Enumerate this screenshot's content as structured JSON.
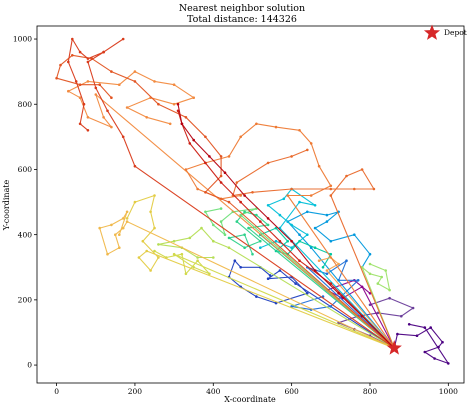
{
  "chart_data": {
    "type": "line",
    "title": "Nearest neighbor solution",
    "subtitle": "Total distance: 144326",
    "xlabel": "X-coordinate",
    "ylabel": "Y-coordinate",
    "xlim": [
      -50,
      1040
    ],
    "ylim": [
      -55,
      1040
    ],
    "x_ticks": [
      0,
      200,
      400,
      600,
      800,
      1000
    ],
    "y_ticks": [
      0,
      200,
      400,
      600,
      800,
      1000
    ],
    "grid": false,
    "legend_position": "top-right",
    "depot": {
      "label": "Depot",
      "x": 862,
      "y": 52,
      "color": "#d62728"
    },
    "series": [
      {
        "color": "#4b0082",
        "points": [
          [
            862,
            52
          ],
          [
            870,
            95
          ],
          [
            920,
            90
          ],
          [
            955,
            115
          ],
          [
            985,
            70
          ],
          [
            975,
            55
          ],
          [
            940,
            40
          ],
          [
            965,
            20
          ],
          [
            1000,
            5
          ],
          [
            940,
            115
          ],
          [
            900,
            125
          ]
        ]
      },
      {
        "color": "#6a3d9a",
        "points": [
          [
            862,
            52
          ],
          [
            800,
            90
          ],
          [
            760,
            110
          ],
          [
            720,
            130
          ],
          [
            770,
            150
          ],
          [
            820,
            160
          ],
          [
            880,
            150
          ],
          [
            910,
            175
          ],
          [
            850,
            205
          ],
          [
            800,
            185
          ]
        ]
      },
      {
        "color": "#8b008b",
        "points": [
          [
            862,
            52
          ],
          [
            780,
            240
          ],
          [
            730,
            205
          ],
          [
            690,
            230
          ],
          [
            760,
            260
          ],
          [
            800,
            220
          ]
        ]
      },
      {
        "color": "#1f3fbf",
        "points": [
          [
            862,
            52
          ],
          [
            610,
            250
          ],
          [
            570,
            290
          ],
          [
            540,
            265
          ],
          [
            600,
            270
          ],
          [
            640,
            220
          ],
          [
            560,
            190
          ],
          [
            510,
            210
          ],
          [
            470,
            240
          ],
          [
            440,
            270
          ],
          [
            455,
            320
          ],
          [
            470,
            300
          ],
          [
            520,
            300
          ],
          [
            545,
            275
          ]
        ]
      },
      {
        "color": "#1f6fd6",
        "points": [
          [
            862,
            52
          ],
          [
            640,
            300
          ],
          [
            690,
            280
          ],
          [
            740,
            320
          ],
          [
            720,
            260
          ],
          [
            770,
            260
          ],
          [
            700,
            180
          ],
          [
            650,
            170
          ],
          [
            600,
            180
          ],
          [
            680,
            210
          ]
        ]
      },
      {
        "color": "#0099dd",
        "points": [
          [
            862,
            52
          ],
          [
            650,
            360
          ],
          [
            620,
            400
          ],
          [
            590,
            440
          ],
          [
            640,
            470
          ],
          [
            690,
            460
          ],
          [
            720,
            470
          ],
          [
            690,
            440
          ],
          [
            660,
            420
          ],
          [
            700,
            380
          ],
          [
            760,
            400
          ],
          [
            800,
            340
          ],
          [
            780,
            300
          ]
        ]
      },
      {
        "color": "#00bfd8",
        "points": [
          [
            862,
            52
          ],
          [
            570,
            420
          ],
          [
            620,
            500
          ],
          [
            660,
            490
          ],
          [
            600,
            540
          ],
          [
            580,
            510
          ],
          [
            540,
            490
          ],
          [
            570,
            460
          ],
          [
            600,
            430
          ],
          [
            640,
            400
          ],
          [
            600,
            360
          ],
          [
            560,
            380
          ],
          [
            520,
            360
          ]
        ]
      },
      {
        "color": "#00c8a0",
        "points": [
          [
            862,
            52
          ],
          [
            520,
            400
          ],
          [
            560,
            420
          ],
          [
            590,
            380
          ],
          [
            560,
            350
          ],
          [
            590,
            340
          ],
          [
            620,
            380
          ],
          [
            660,
            360
          ],
          [
            700,
            340
          ],
          [
            680,
            300
          ]
        ]
      },
      {
        "color": "#2dd18a",
        "points": [
          [
            862,
            52
          ],
          [
            490,
            420
          ],
          [
            540,
            430
          ],
          [
            510,
            460
          ],
          [
            480,
            470
          ],
          [
            460,
            440
          ],
          [
            520,
            380
          ],
          [
            480,
            360
          ],
          [
            440,
            390
          ],
          [
            480,
            400
          ],
          [
            500,
            340
          ]
        ]
      },
      {
        "color": "#6fe07a",
        "points": [
          [
            862,
            52
          ],
          [
            470,
            460
          ],
          [
            510,
            480
          ],
          [
            450,
            470
          ],
          [
            420,
            440
          ],
          [
            430,
            400
          ],
          [
            400,
            430
          ],
          [
            380,
            470
          ],
          [
            420,
            480
          ]
        ]
      },
      {
        "color": "#9ee36a",
        "points": [
          [
            862,
            52
          ],
          [
            780,
            300
          ],
          [
            800,
            280
          ],
          [
            830,
            270
          ],
          [
            820,
            250
          ],
          [
            850,
            230
          ],
          [
            840,
            290
          ],
          [
            800,
            310
          ]
        ]
      },
      {
        "color": "#b5de55",
        "points": [
          [
            862,
            52
          ],
          [
            440,
            360
          ],
          [
            400,
            380
          ],
          [
            370,
            420
          ],
          [
            340,
            390
          ],
          [
            300,
            380
          ],
          [
            260,
            370
          ],
          [
            320,
            360
          ],
          [
            360,
            330
          ],
          [
            400,
            330
          ]
        ]
      },
      {
        "color": "#d1d94a",
        "points": [
          [
            862,
            52
          ],
          [
            300,
            340
          ],
          [
            350,
            300
          ],
          [
            390,
            280
          ],
          [
            360,
            320
          ],
          [
            330,
            280
          ],
          [
            320,
            340
          ],
          [
            280,
            330
          ],
          [
            250,
            350
          ]
        ]
      },
      {
        "color": "#e3cc44",
        "points": [
          [
            862,
            52
          ],
          [
            230,
            350
          ],
          [
            210,
            330
          ],
          [
            240,
            290
          ],
          [
            260,
            330
          ],
          [
            220,
            380
          ],
          [
            250,
            420
          ],
          [
            240,
            470
          ],
          [
            250,
            520
          ],
          [
            200,
            500
          ],
          [
            180,
            450
          ]
        ]
      },
      {
        "color": "#f0b84a",
        "points": [
          [
            862,
            52
          ],
          [
            180,
            440
          ],
          [
            170,
            420
          ],
          [
            150,
            400
          ],
          [
            160,
            360
          ],
          [
            130,
            340
          ],
          [
            110,
            420
          ],
          [
            140,
            430
          ],
          [
            170,
            450
          ],
          [
            180,
            470
          ],
          [
            160,
            400
          ]
        ]
      },
      {
        "color": "#f4a24e",
        "points": [
          [
            862,
            52
          ],
          [
            690,
            290
          ],
          [
            720,
            310
          ],
          [
            700,
            330
          ],
          [
            670,
            320
          ]
        ]
      },
      {
        "color": "#f28a3f",
        "points": [
          [
            862,
            52
          ],
          [
            100,
            830
          ],
          [
            120,
            760
          ],
          [
            140,
            730
          ],
          [
            80,
            760
          ],
          [
            60,
            820
          ],
          [
            30,
            840
          ],
          [
            80,
            870
          ],
          [
            160,
            860
          ],
          [
            200,
            900
          ],
          [
            250,
            870
          ],
          [
            300,
            860
          ],
          [
            350,
            820
          ],
          [
            300,
            800
          ],
          [
            240,
            820
          ],
          [
            180,
            790
          ],
          [
            230,
            760
          ],
          [
            290,
            740
          ]
        ]
      },
      {
        "color": "#ee7a34",
        "points": [
          [
            862,
            52
          ],
          [
            590,
            520
          ],
          [
            650,
            520
          ],
          [
            700,
            550
          ],
          [
            670,
            610
          ],
          [
            650,
            680
          ],
          [
            620,
            720
          ],
          [
            560,
            730
          ],
          [
            510,
            740
          ],
          [
            470,
            700
          ],
          [
            440,
            640
          ],
          [
            380,
            620
          ],
          [
            330,
            600
          ],
          [
            360,
            540
          ],
          [
            420,
            510
          ],
          [
            470,
            520
          ]
        ]
      },
      {
        "color": "#e9692b",
        "points": [
          [
            862,
            52
          ],
          [
            700,
            520
          ],
          [
            740,
            580
          ],
          [
            780,
            600
          ],
          [
            810,
            540
          ],
          [
            760,
            540
          ],
          [
            700,
            540
          ],
          [
            600,
            540
          ],
          [
            500,
            530
          ],
          [
            450,
            520
          ],
          [
            460,
            560
          ],
          [
            540,
            620
          ],
          [
            600,
            640
          ],
          [
            640,
            660
          ]
        ]
      },
      {
        "color": "#e25422",
        "points": [
          [
            862,
            52
          ],
          [
            440,
            500
          ],
          [
            380,
            530
          ],
          [
            420,
            580
          ],
          [
            420,
            640
          ],
          [
            380,
            700
          ],
          [
            330,
            760
          ],
          [
            260,
            800
          ],
          [
            200,
            870
          ],
          [
            140,
            900
          ],
          [
            90,
            940
          ],
          [
            40,
            950
          ],
          [
            10,
            920
          ],
          [
            0,
            880
          ],
          [
            60,
            860
          ],
          [
            110,
            860
          ],
          [
            140,
            820
          ]
        ]
      },
      {
        "color": "#d93a1a",
        "points": [
          [
            862,
            52
          ],
          [
            200,
            610
          ],
          [
            170,
            700
          ],
          [
            130,
            780
          ],
          [
            100,
            850
          ],
          [
            80,
            930
          ],
          [
            120,
            960
          ],
          [
            170,
            1000
          ],
          [
            120,
            960
          ],
          [
            80,
            940
          ],
          [
            60,
            960
          ],
          [
            40,
            1000
          ],
          [
            30,
            930
          ],
          [
            50,
            870
          ],
          [
            70,
            800
          ],
          [
            60,
            740
          ],
          [
            80,
            720
          ]
        ]
      },
      {
        "color": "#cc1f14",
        "points": [
          [
            862,
            52
          ],
          [
            700,
            250
          ],
          [
            620,
            320
          ],
          [
            570,
            380
          ],
          [
            520,
            440
          ],
          [
            470,
            500
          ],
          [
            420,
            560
          ],
          [
            380,
            620
          ],
          [
            340,
            680
          ],
          [
            320,
            740
          ],
          [
            310,
            780
          ]
        ]
      },
      {
        "color": "#b5000f",
        "points": [
          [
            862,
            52
          ],
          [
            780,
            150
          ],
          [
            720,
            220
          ],
          [
            660,
            290
          ],
          [
            600,
            380
          ],
          [
            540,
            450
          ],
          [
            480,
            520
          ],
          [
            430,
            590
          ],
          [
            390,
            640
          ],
          [
            350,
            690
          ],
          [
            320,
            740
          ],
          [
            310,
            800
          ]
        ]
      }
    ]
  }
}
